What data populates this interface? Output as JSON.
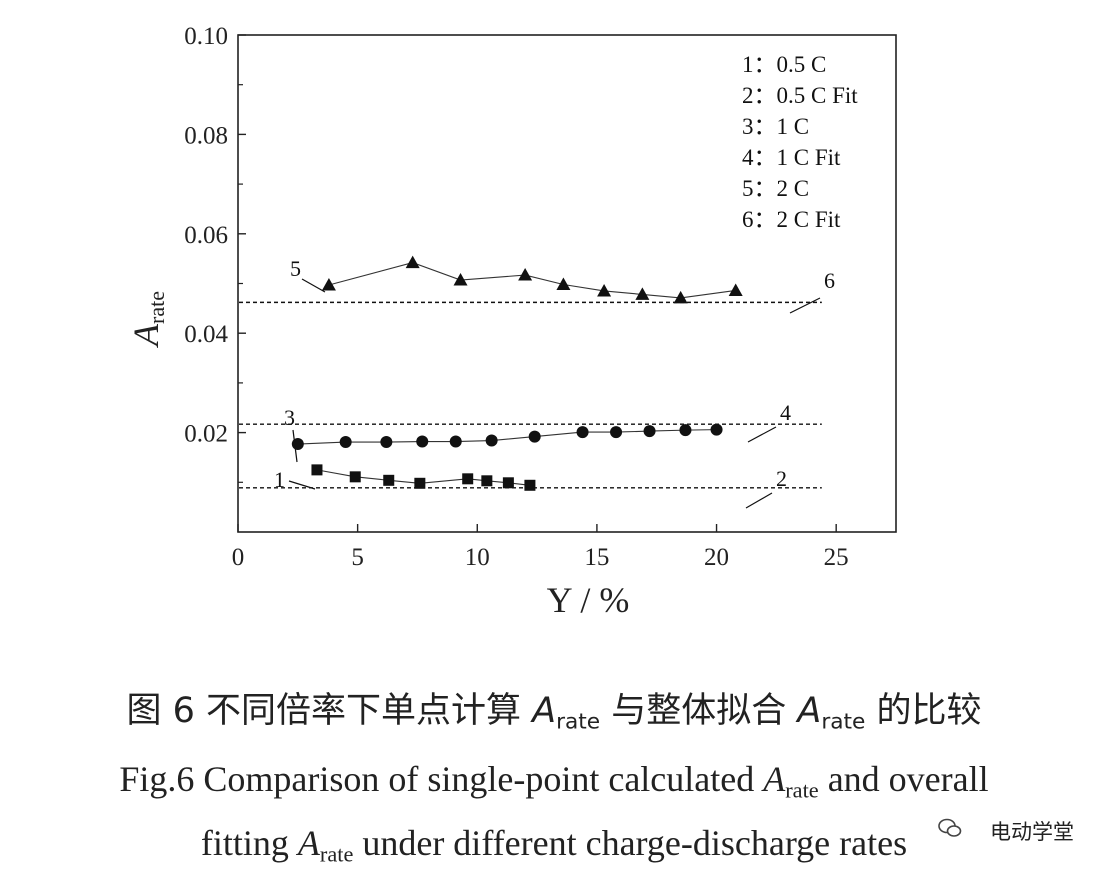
{
  "chart_data": {
    "type": "scatter",
    "xlabel": "Y / %",
    "ylabel_main": "A",
    "ylabel_sub": "rate",
    "xlim": [
      0,
      27.5
    ],
    "ylim": [
      0.0,
      0.1
    ],
    "xticks": [
      0,
      5,
      10,
      15,
      20,
      25
    ],
    "yticks": [
      0.02,
      0.04,
      0.06,
      0.08,
      0.1
    ],
    "xtick_labels": [
      "0",
      "5",
      "10",
      "15",
      "20",
      "25"
    ],
    "ytick_labels": [
      "0.02",
      "0.04",
      "0.06",
      "0.08",
      "0.10"
    ],
    "legend": [
      "1：0.5 C",
      "2：0.5 C Fit",
      "3：1 C",
      "4：1 C Fit",
      "5：2 C",
      "6：2 C Fit"
    ],
    "series": [
      {
        "name": "1",
        "label": "0.5 C",
        "marker": "square",
        "x": [
          3.3,
          4.9,
          6.3,
          7.6,
          9.6,
          10.4,
          11.3,
          12.2
        ],
        "y": [
          0.0125,
          0.0111,
          0.0104,
          0.0098,
          0.0107,
          0.0103,
          0.0099,
          0.0094
        ]
      },
      {
        "name": "2",
        "label": "0.5 C Fit",
        "marker": "none",
        "style": "dashed",
        "x": [
          0,
          24.4
        ],
        "y": [
          0.0089,
          0.0089
        ]
      },
      {
        "name": "3",
        "label": "1 C",
        "marker": "circle",
        "x": [
          2.5,
          4.5,
          6.2,
          7.7,
          9.1,
          10.6,
          12.4,
          14.4,
          15.8,
          17.2,
          18.7,
          20.0
        ],
        "y": [
          0.0177,
          0.0181,
          0.0181,
          0.0182,
          0.0182,
          0.0184,
          0.0192,
          0.0201,
          0.0201,
          0.0203,
          0.0205,
          0.0206
        ]
      },
      {
        "name": "4",
        "label": "1 C Fit",
        "marker": "none",
        "style": "dashed",
        "x": [
          0,
          24.4
        ],
        "y": [
          0.0217,
          0.0217
        ]
      },
      {
        "name": "5",
        "label": "2 C",
        "marker": "triangle",
        "x": [
          3.8,
          7.3,
          9.3,
          12.0,
          13.6,
          15.3,
          16.9,
          18.5,
          20.8
        ],
        "y": [
          0.0497,
          0.0542,
          0.0507,
          0.0517,
          0.0498,
          0.0485,
          0.0478,
          0.0471,
          0.0486
        ]
      },
      {
        "name": "6",
        "label": "2 C Fit",
        "marker": "none",
        "style": "dashed",
        "x": [
          0,
          24.4
        ],
        "y": [
          0.0462,
          0.0462
        ]
      }
    ],
    "callouts": [
      "1",
      "2",
      "3",
      "4",
      "5",
      "6"
    ]
  },
  "caption": {
    "cn_part1": "图 6  不同倍率下单点计算 ",
    "cn_part2": " 与整体拟合 ",
    "cn_part3": " 的比较",
    "en1_part1": "Fig.6 Comparison of single-point calculated ",
    "en1_part2": " and overall",
    "en2_part1": "fitting ",
    "en2_part2": " under different charge-discharge rates",
    "symbol": "A",
    "symbol_sub": "rate"
  },
  "watermark": {
    "text": "电动学堂"
  }
}
